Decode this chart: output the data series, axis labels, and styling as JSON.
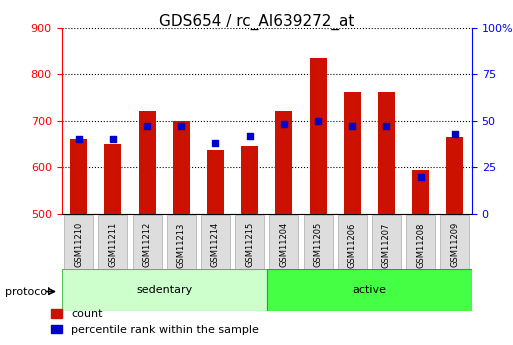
{
  "title": "GDS654 / rc_AI639272_at",
  "samples": [
    "GSM11210",
    "GSM11211",
    "GSM11212",
    "GSM11213",
    "GSM11214",
    "GSM11215",
    "GSM11204",
    "GSM11205",
    "GSM11206",
    "GSM11207",
    "GSM11208",
    "GSM11209"
  ],
  "groups": [
    "sedentary",
    "sedentary",
    "sedentary",
    "sedentary",
    "sedentary",
    "sedentary",
    "active",
    "active",
    "active",
    "active",
    "active",
    "active"
  ],
  "count_values": [
    660,
    650,
    720,
    700,
    638,
    645,
    720,
    835,
    762,
    762,
    595,
    665
  ],
  "percentile_values": [
    40,
    40,
    47,
    47,
    38,
    42,
    48,
    50,
    47,
    47,
    20,
    43
  ],
  "bar_color": "#cc1100",
  "dot_color": "#0000cc",
  "ylim_left": [
    500,
    900
  ],
  "ylim_right": [
    0,
    100
  ],
  "yticks_left": [
    500,
    600,
    700,
    800,
    900
  ],
  "yticks_right": [
    0,
    25,
    50,
    75,
    100
  ],
  "yticklabels_right": [
    "0",
    "25",
    "50",
    "75",
    "100%"
  ],
  "grid_color": "black",
  "background_color": "#ffffff",
  "group_colors": {
    "sedentary": "#ccffcc",
    "active": "#44ff44"
  },
  "group_label": "protocol",
  "xlabel_color": "#cc0000",
  "ylabel_right_color": "#0000cc",
  "bar_bottom": 500,
  "bar_width": 0.5,
  "tick_label_box_color": "#dddddd",
  "title_fontsize": 11,
  "tick_fontsize": 8,
  "legend_fontsize": 8,
  "label_fontsize": 8
}
